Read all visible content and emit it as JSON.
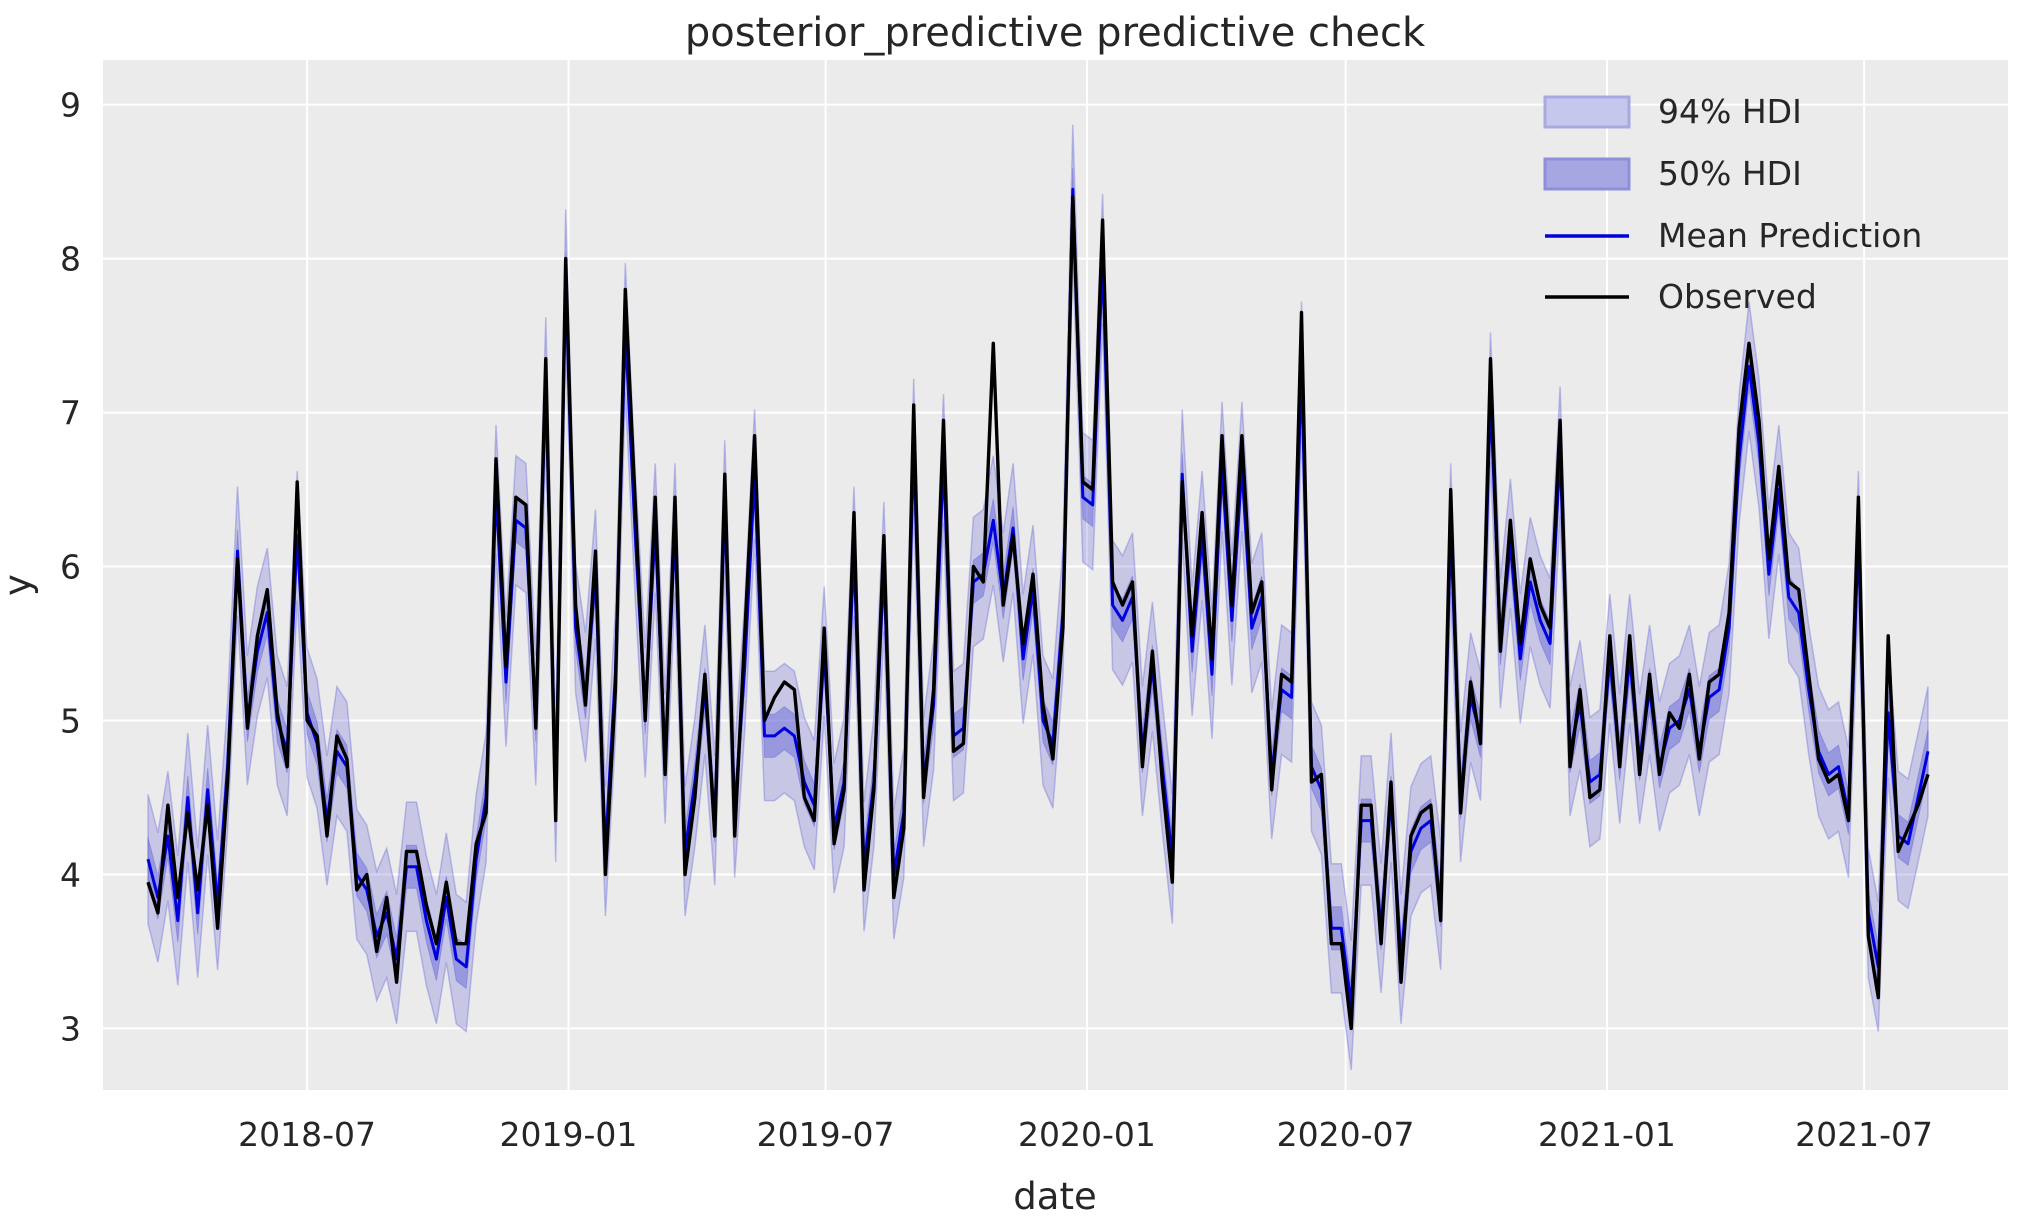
{
  "chart_data": {
    "type": "line",
    "title": "posterior_predictive predictive check",
    "xlabel": "date",
    "ylabel": "y",
    "grid": true,
    "legend_position": "upper right",
    "x_tick_labels": [
      "2018-07",
      "2019-01",
      "2019-07",
      "2020-01",
      "2020-07",
      "2021-01",
      "2021-07"
    ],
    "y_ticks": [
      9,
      8,
      7,
      6,
      5,
      4,
      3
    ],
    "ylim": [
      2.6,
      9.29
    ],
    "start_date": "2018-03-11",
    "freq_days": 7,
    "series": [
      {
        "name": "Observed",
        "color": "#000000",
        "values": [
          3.95,
          3.75,
          4.45,
          3.85,
          4.4,
          3.9,
          4.45,
          3.65,
          4.6,
          6.05,
          4.95,
          5.55,
          5.85,
          5.05,
          4.7,
          6.55,
          5.0,
          4.9,
          4.25,
          4.9,
          4.75,
          3.9,
          4.0,
          3.5,
          3.85,
          3.3,
          4.15,
          4.15,
          3.8,
          3.55,
          3.95,
          3.55,
          3.55,
          4.2,
          4.4,
          6.7,
          5.35,
          6.45,
          6.4,
          4.95,
          7.35,
          4.35,
          8.0,
          5.75,
          5.1,
          6.1,
          4.0,
          5.2,
          7.8,
          6.4,
          5.0,
          6.45,
          4.65,
          6.45,
          4.0,
          4.5,
          5.3,
          4.25,
          6.6,
          4.25,
          5.55,
          6.85,
          5.0,
          5.15,
          5.25,
          5.2,
          4.5,
          4.35,
          5.6,
          4.2,
          4.55,
          6.35,
          3.9,
          4.55,
          6.2,
          3.85,
          4.3,
          7.05,
          4.5,
          5.2,
          6.95,
          4.8,
          4.85,
          6.0,
          5.9,
          7.45,
          5.75,
          6.2,
          5.5,
          5.95,
          5.1,
          4.75,
          5.6,
          8.4,
          6.55,
          6.5,
          8.25,
          5.9,
          5.75,
          5.9,
          4.7,
          5.45,
          4.6,
          3.95,
          6.55,
          5.55,
          6.35,
          5.4,
          6.85,
          5.75,
          6.85,
          5.7,
          5.9,
          4.55,
          5.3,
          5.25,
          7.65,
          4.6,
          4.65,
          3.55,
          3.55,
          3.0,
          4.45,
          4.45,
          3.55,
          4.6,
          3.3,
          4.25,
          4.4,
          4.45,
          3.7,
          6.5,
          4.4,
          5.25,
          4.85,
          7.35,
          5.45,
          6.3,
          5.5,
          6.05,
          5.75,
          5.6,
          6.95,
          4.7,
          5.2,
          4.5,
          4.55,
          5.55,
          4.7,
          5.55,
          4.65,
          5.3,
          4.65,
          5.05,
          4.95,
          5.3,
          4.75,
          5.25,
          5.3,
          5.7,
          6.9,
          7.45,
          6.95,
          6.05,
          6.65,
          5.9,
          5.85,
          5.3,
          4.75,
          4.6,
          4.65,
          4.35,
          6.45,
          3.6,
          3.2,
          5.55,
          4.15,
          4.3,
          4.45,
          4.65
        ]
      },
      {
        "name": "Mean Prediction",
        "color": "#0000dd",
        "values": [
          4.1,
          3.85,
          4.25,
          3.7,
          4.5,
          3.75,
          4.55,
          3.8,
          4.7,
          6.1,
          5.0,
          5.45,
          5.7,
          5.0,
          4.8,
          6.2,
          5.05,
          4.85,
          4.35,
          4.8,
          4.7,
          4.0,
          3.9,
          3.6,
          3.75,
          3.45,
          4.05,
          4.05,
          3.7,
          3.45,
          3.85,
          3.45,
          3.4,
          4.1,
          4.5,
          6.5,
          5.25,
          6.3,
          6.25,
          5.0,
          7.2,
          4.5,
          7.9,
          5.6,
          5.15,
          5.95,
          4.15,
          5.3,
          7.55,
          6.2,
          5.05,
          6.25,
          4.75,
          6.25,
          4.15,
          4.6,
          5.2,
          4.35,
          6.4,
          4.4,
          5.35,
          6.6,
          4.9,
          4.9,
          4.95,
          4.9,
          4.6,
          4.45,
          5.45,
          4.3,
          4.6,
          6.1,
          4.05,
          4.6,
          6.0,
          4.0,
          4.4,
          6.8,
          4.6,
          5.1,
          6.7,
          4.9,
          4.95,
          5.9,
          5.95,
          6.3,
          5.8,
          6.25,
          5.4,
          5.85,
          5.0,
          4.85,
          5.7,
          8.45,
          6.45,
          6.4,
          8.0,
          5.75,
          5.65,
          5.8,
          4.8,
          5.35,
          4.7,
          4.1,
          6.6,
          5.45,
          6.2,
          5.3,
          6.65,
          5.65,
          6.65,
          5.6,
          5.8,
          4.65,
          5.2,
          5.15,
          7.3,
          4.7,
          4.55,
          3.65,
          3.65,
          3.15,
          4.35,
          4.35,
          3.65,
          4.5,
          3.45,
          4.15,
          4.3,
          4.35,
          3.8,
          6.25,
          4.5,
          5.15,
          4.9,
          7.1,
          5.5,
          6.15,
          5.4,
          5.9,
          5.65,
          5.5,
          6.75,
          4.8,
          5.1,
          4.6,
          4.65,
          5.4,
          4.75,
          5.4,
          4.75,
          5.2,
          4.7,
          4.95,
          5.0,
          5.2,
          4.8,
          5.15,
          5.2,
          5.6,
          6.7,
          7.3,
          6.8,
          5.95,
          6.5,
          5.8,
          5.7,
          5.2,
          4.8,
          4.65,
          4.7,
          4.4,
          6.2,
          3.75,
          3.4,
          5.05,
          4.25,
          4.2,
          4.5,
          4.8
        ]
      }
    ],
    "bands": [
      {
        "name": "94% HDI",
        "around": "Mean Prediction",
        "halfwidth": 0.42
      },
      {
        "name": "50% HDI",
        "around": "Mean Prediction",
        "halfwidth": 0.14
      }
    ]
  },
  "legend": {
    "items": [
      {
        "label": "94% HDI",
        "swatch": "patch",
        "fill": "#c7c7ee",
        "stroke": "#a9a9e2"
      },
      {
        "label": "50% HDI",
        "swatch": "patch",
        "fill": "#a6a6e2",
        "stroke": "#8f8fd9"
      },
      {
        "label": "Mean Prediction",
        "swatch": "line",
        "stroke": "#0000dd"
      },
      {
        "label": "Observed",
        "swatch": "line",
        "stroke": "#000000"
      }
    ]
  },
  "colors": {
    "axes_background": "#ebebeb",
    "grid": "#ffffff",
    "band_base": "#5f5fd6",
    "band94_opacity": 0.26,
    "band50_opacity": 0.45,
    "mean_line": "#0000dd",
    "observed_line": "#000000",
    "text": "#262626"
  }
}
